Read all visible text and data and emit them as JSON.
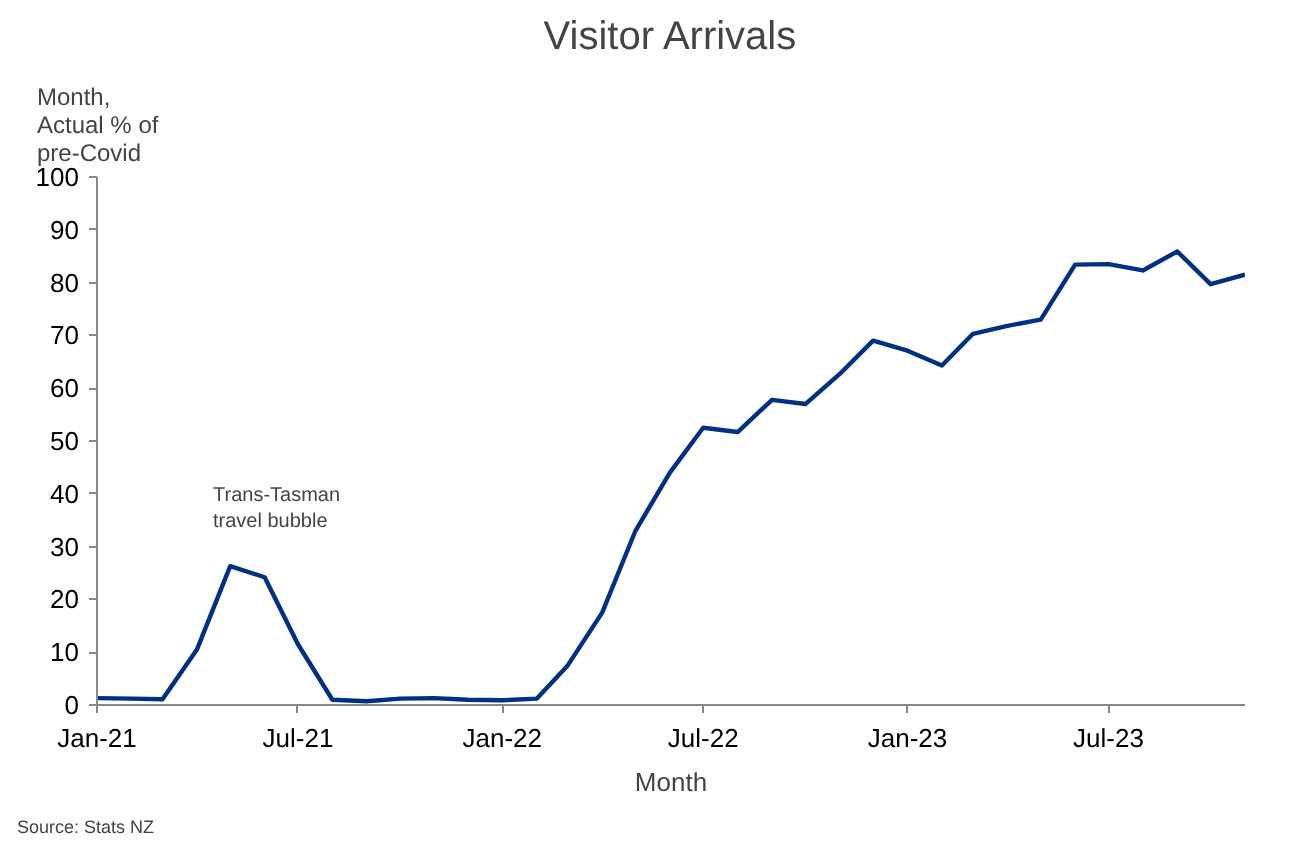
{
  "chart_data": {
    "type": "line",
    "title": "Visitor Arrivals",
    "xlabel": "Month",
    "ylabel": "Month,\nActual % of\npre-Covid",
    "x": [
      "2021-01",
      "2021-02",
      "2021-03",
      "2021-04",
      "2021-05",
      "2021-06",
      "2021-07",
      "2021-08",
      "2021-09",
      "2021-10",
      "2021-11",
      "2021-12",
      "2022-01",
      "2022-02",
      "2022-03",
      "2022-04",
      "2022-05",
      "2022-06",
      "2022-07",
      "2022-08",
      "2022-09",
      "2022-10",
      "2022-11",
      "2022-12",
      "2023-01",
      "2023-02",
      "2023-03",
      "2023-04",
      "2023-05",
      "2023-06",
      "2023-07",
      "2023-08",
      "2023-09",
      "2023-10",
      "2023-11"
    ],
    "series": [
      {
        "color": "#003082",
        "values": [
          1.3,
          1.2,
          1.1,
          10.5,
          26.3,
          24.2,
          11.5,
          1.0,
          0.7,
          1.2,
          1.3,
          1.0,
          0.9,
          1.2,
          7.5,
          17.5,
          33,
          44,
          52.5,
          51.7,
          57.8,
          57,
          62.7,
          69,
          67.1,
          64.3,
          70.3,
          71.8,
          73.0,
          83.4,
          83.5,
          82.3,
          85.9,
          79.7,
          81.5
        ]
      }
    ],
    "xlim": [
      "2021-01",
      "2023-11"
    ],
    "xticks": [
      {
        "value": "2021-01",
        "label": "Jan-21"
      },
      {
        "value": "2021-07",
        "label": "Jul-21"
      },
      {
        "value": "2022-01",
        "label": "Jan-22"
      },
      {
        "value": "2022-07",
        "label": "Jul-22"
      },
      {
        "value": "2023-01",
        "label": "Jan-23"
      },
      {
        "value": "2023-07",
        "label": "Jul-23"
      }
    ],
    "ylim": [
      0,
      100
    ],
    "yticks": [
      0,
      10,
      20,
      30,
      40,
      50,
      60,
      70,
      80,
      90,
      100
    ],
    "grid": false,
    "marker": "none",
    "line_style": "solid",
    "annotations": [
      "Trans-Tasman\ntravel bubble",
      "Source: Stats NZ"
    ]
  }
}
